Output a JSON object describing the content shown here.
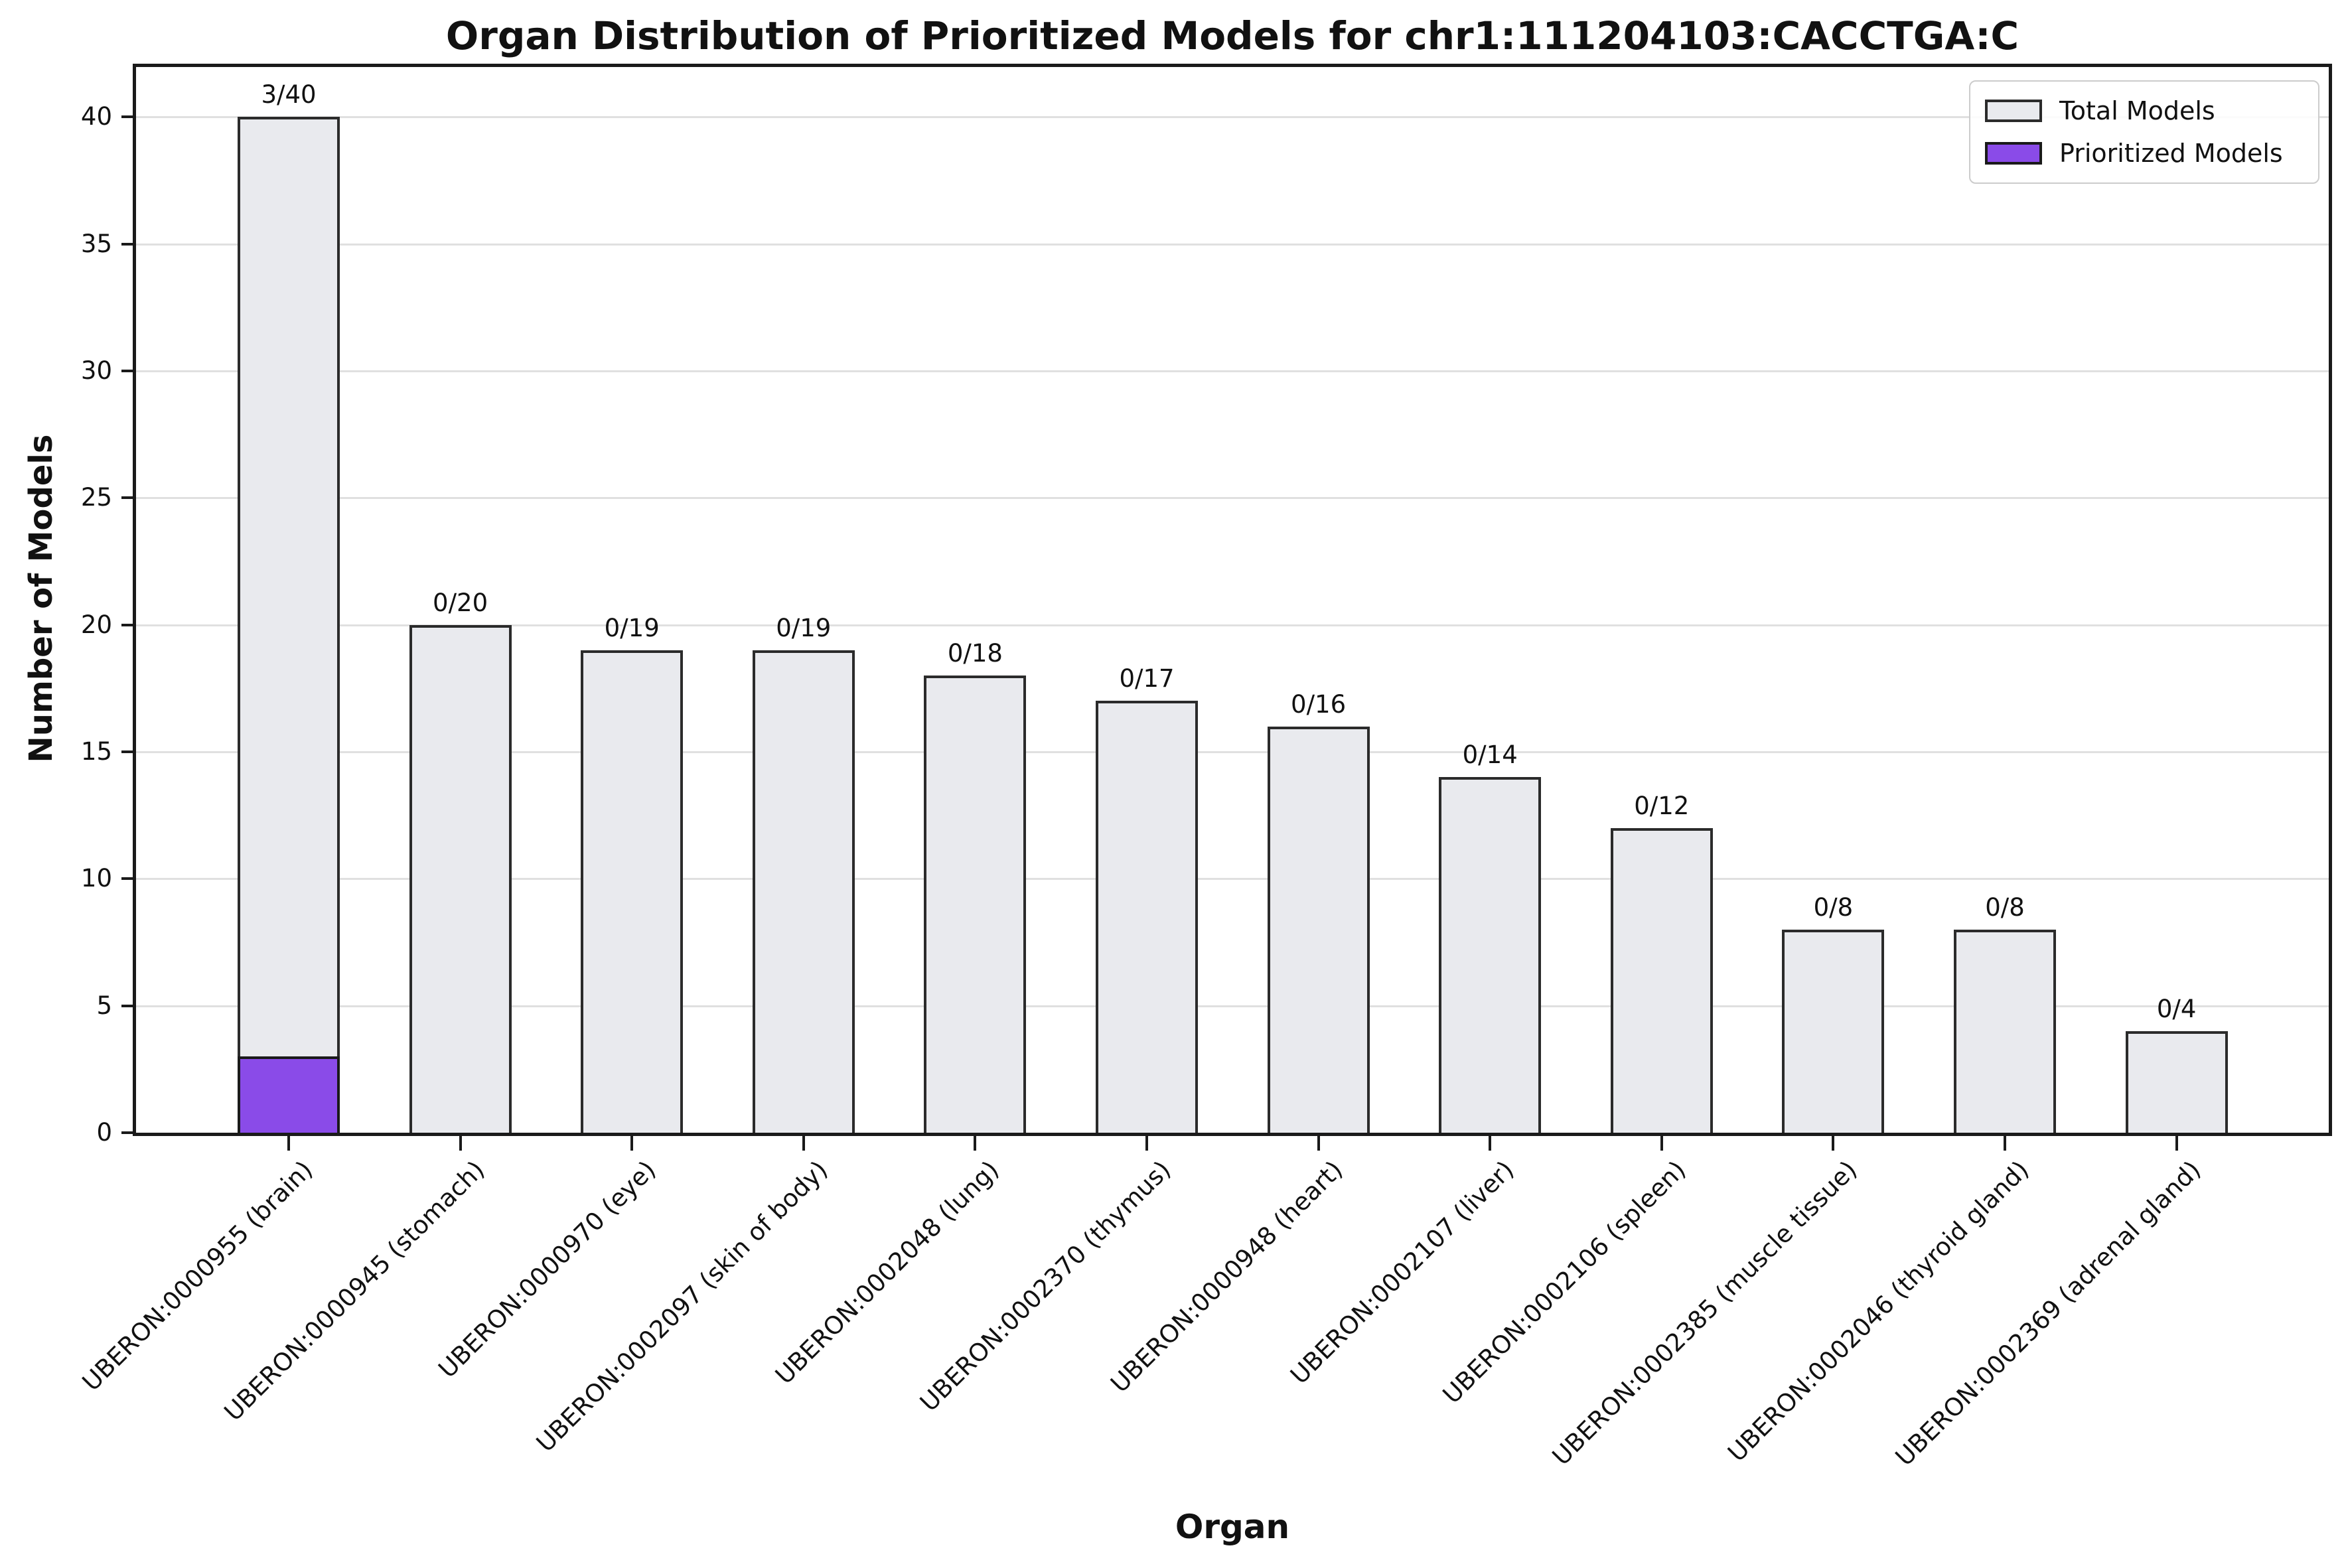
{
  "chart_data": {
    "type": "bar",
    "title": "Organ Distribution of Prioritized Models for chr1:111204103:CACCTGA:C",
    "xlabel": "Organ",
    "ylabel": "Number of Models",
    "ylim": [
      0,
      42
    ],
    "yticks": [
      0,
      5,
      10,
      15,
      20,
      25,
      30,
      35,
      40
    ],
    "grid": true,
    "legend_position": "upper-right-inside",
    "categories": [
      "UBERON:0000955 (brain)",
      "UBERON:0000945 (stomach)",
      "UBERON:0000970 (eye)",
      "UBERON:0002097 (skin of body)",
      "UBERON:0002048 (lung)",
      "UBERON:0002370 (thymus)",
      "UBERON:0000948 (heart)",
      "UBERON:0002107 (liver)",
      "UBERON:0002106 (spleen)",
      "UBERON:0002385 (muscle tissue)",
      "UBERON:0002046 (thyroid gland)",
      "UBERON:0002369 (adrenal gland)"
    ],
    "series": [
      {
        "name": "Total Models",
        "color": "#e9eaee",
        "edge_color": "#2b2b2b",
        "values": [
          40,
          20,
          19,
          19,
          18,
          17,
          16,
          14,
          12,
          8,
          8,
          4
        ]
      },
      {
        "name": "Prioritized Models",
        "color": "#8a4be8",
        "edge_color": "#1a1a1a",
        "values": [
          3,
          0,
          0,
          0,
          0,
          0,
          0,
          0,
          0,
          0,
          0,
          0
        ]
      }
    ],
    "bar_labels": [
      "3/40",
      "0/20",
      "0/19",
      "0/19",
      "0/18",
      "0/17",
      "0/16",
      "0/14",
      "0/12",
      "0/8",
      "0/8",
      "0/4"
    ]
  }
}
